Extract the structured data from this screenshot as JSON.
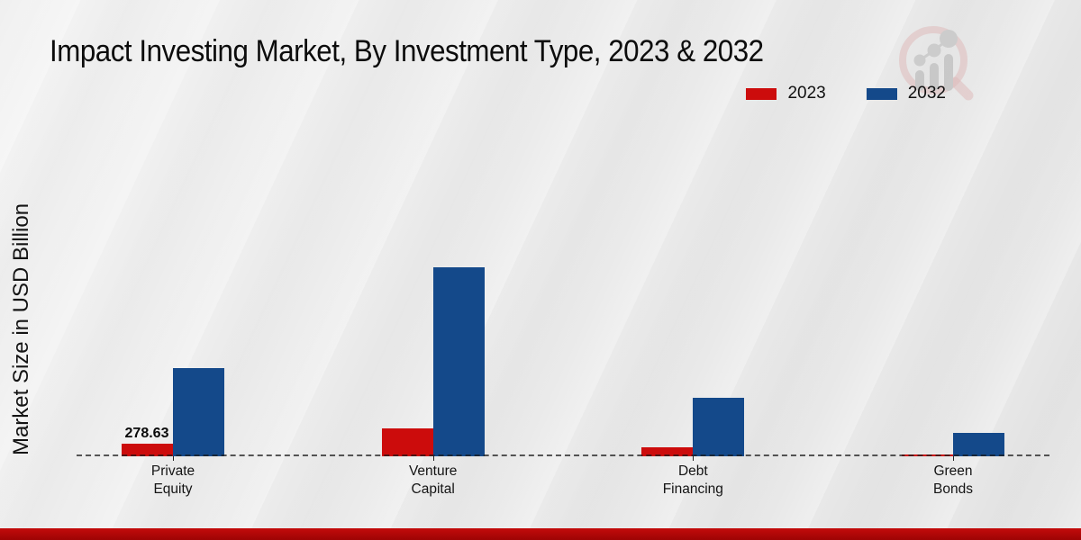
{
  "page": {
    "title": "Impact Investing Market, By Investment Type, 2023 & 2032"
  },
  "icons": {
    "watermark_logo": "magnifier-growth-chart-logo"
  },
  "colors": {
    "series_2023": "#cc0c0c",
    "series_2032": "#14498a",
    "footer_band": "#b00808",
    "background": "#ebebeb",
    "baseline": "#1a1a1a"
  },
  "chart_data": {
    "type": "bar",
    "title": "Impact Investing Market, By Investment Type, 2023 & 2032",
    "xlabel": "",
    "ylabel": "Market Size in USD Billion",
    "categories": [
      "Private Equity",
      "Venture Capital",
      "Debt Financing",
      "Green Bonds"
    ],
    "series": [
      {
        "name": "2023",
        "color": "#cc0c0c",
        "values": [
          278.63,
          625,
          200,
          50
        ]
      },
      {
        "name": "2032",
        "color": "#14498a",
        "values": [
          1950,
          4180,
          1300,
          520
        ]
      }
    ],
    "value_labels": [
      {
        "series_index": 0,
        "category_index": 0,
        "text": "278.63"
      }
    ],
    "ylim": [
      0,
      4500
    ],
    "grid": false,
    "baseline_style": "dashed",
    "legend_position": "top-right",
    "note": "2032 series values and unlabeled 2023 values estimated from bar heights; only 278.63 is printed on the chart"
  }
}
